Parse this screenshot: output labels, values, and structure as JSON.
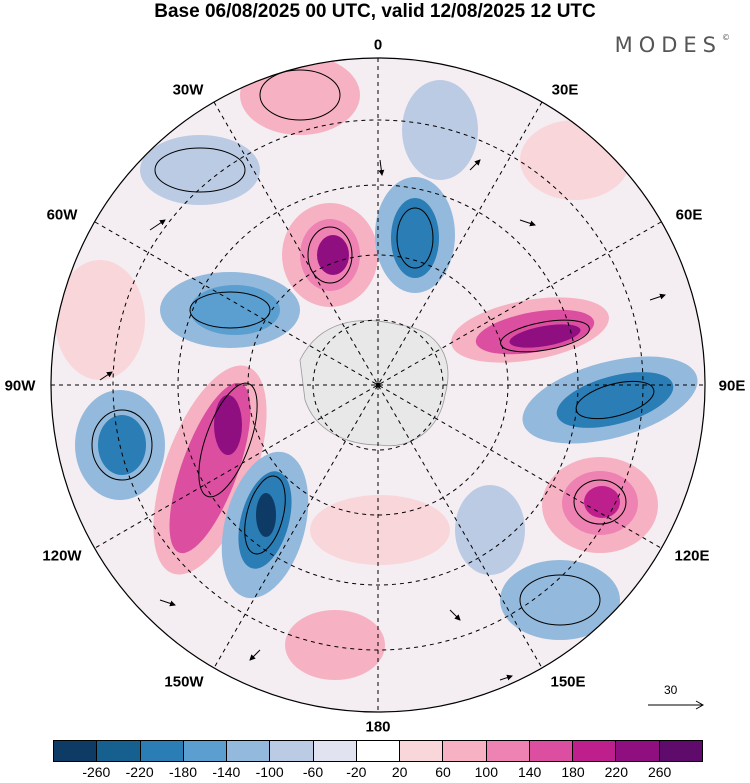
{
  "header": {
    "title": "Base 06/08/2025 00 UTC, valid 12/08/2025 12 UTC",
    "logo": "MODES",
    "logo_mark": "©"
  },
  "longitude_labels": {
    "lon_0": "0",
    "lon_30e": "30E",
    "lon_60e": "60E",
    "lon_90e": "90E",
    "lon_120e": "120E",
    "lon_150e": "150E",
    "lon_180": "180",
    "lon_150w": "150W",
    "lon_120w": "120W",
    "lon_90w": "90W",
    "lon_60w": "60W",
    "lon_30w": "30W"
  },
  "reference_vector": {
    "value": "30"
  },
  "colorbar": {
    "colors": [
      "#0d3b66",
      "#16608f",
      "#2a7db5",
      "#5a9fd0",
      "#93b9dc",
      "#bccbe4",
      "#e2e3f0",
      "#ffffff",
      "#f9d6da",
      "#f6b2c3",
      "#ee82b2",
      "#dc4fa0",
      "#bd1f8c",
      "#900f80",
      "#5e0b6b"
    ],
    "tick_labels": [
      "-260",
      "-220",
      "-180",
      "-140",
      "-100",
      "-60",
      "-20",
      "20",
      "60",
      "100",
      "140",
      "180",
      "220",
      "260"
    ]
  }
}
